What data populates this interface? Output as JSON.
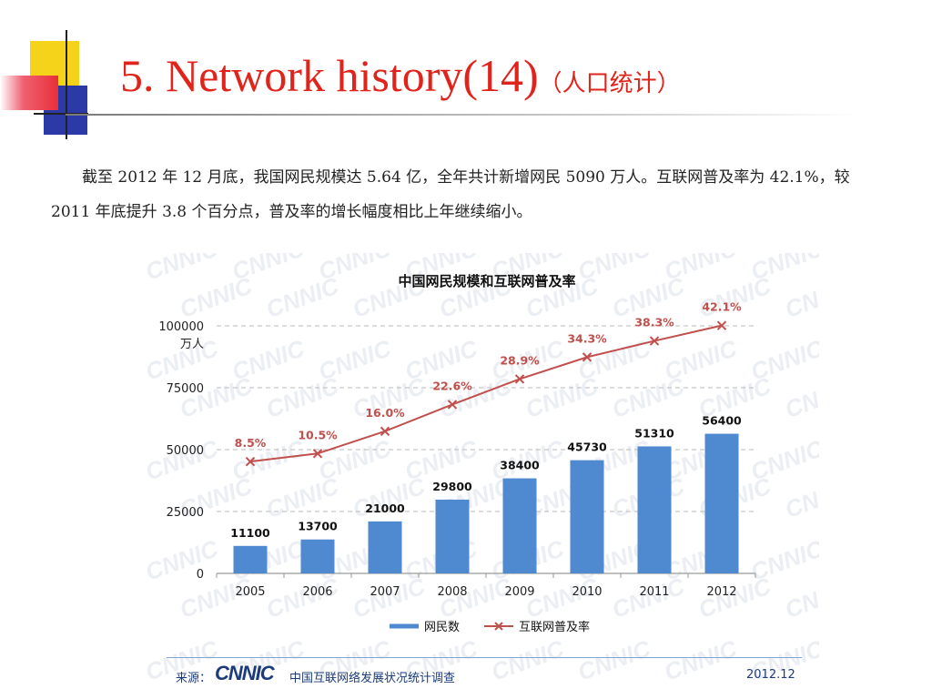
{
  "slide": {
    "title": "5. Network history(14)",
    "title_sub": "（人口统计）",
    "paragraph": "截至 2012 年 12 月底，我国网民规模达 5.64 亿，全年共计新增网民 5090 万人。互联网普及率为 42.1%，较 2011 年底提升 3.8 个百分点，普及率的增长幅度相比上年继续缩小。",
    "accent_color": "#e0241b"
  },
  "chart_data": {
    "type": "bar",
    "title": "中国网民规模和互联网普及率",
    "categories": [
      "2005",
      "2006",
      "2007",
      "2008",
      "2009",
      "2010",
      "2011",
      "2012"
    ],
    "series": [
      {
        "name": "网民数",
        "type": "bar",
        "color": "#4f89cf",
        "values": [
          11100,
          13700,
          21000,
          29800,
          38400,
          45730,
          51310,
          56400
        ],
        "labels": [
          "11100",
          "13700",
          "21000",
          "29800",
          "38400",
          "45730",
          "51310",
          "56400"
        ]
      },
      {
        "name": "互联网普及率",
        "type": "line",
        "color": "#c0504d",
        "values": [
          8.5,
          10.5,
          16.0,
          22.6,
          28.9,
          34.3,
          38.3,
          42.1
        ],
        "labels": [
          "8.5%",
          "10.5%",
          "16.0%",
          "22.6%",
          "28.9%",
          "34.3%",
          "38.3%",
          "42.1%"
        ]
      }
    ],
    "ylim": [
      0,
      100000
    ],
    "yticks": [
      "0",
      "25000",
      "50000",
      "75000",
      "100000"
    ],
    "ylabel": "万人",
    "grid": true,
    "legend": "bottom",
    "watermark": "CNNIC"
  },
  "source": {
    "label": "来源：",
    "logo": "CNNIC",
    "org": "中国互联网络发展状况统计调查",
    "date": "2012.12"
  }
}
